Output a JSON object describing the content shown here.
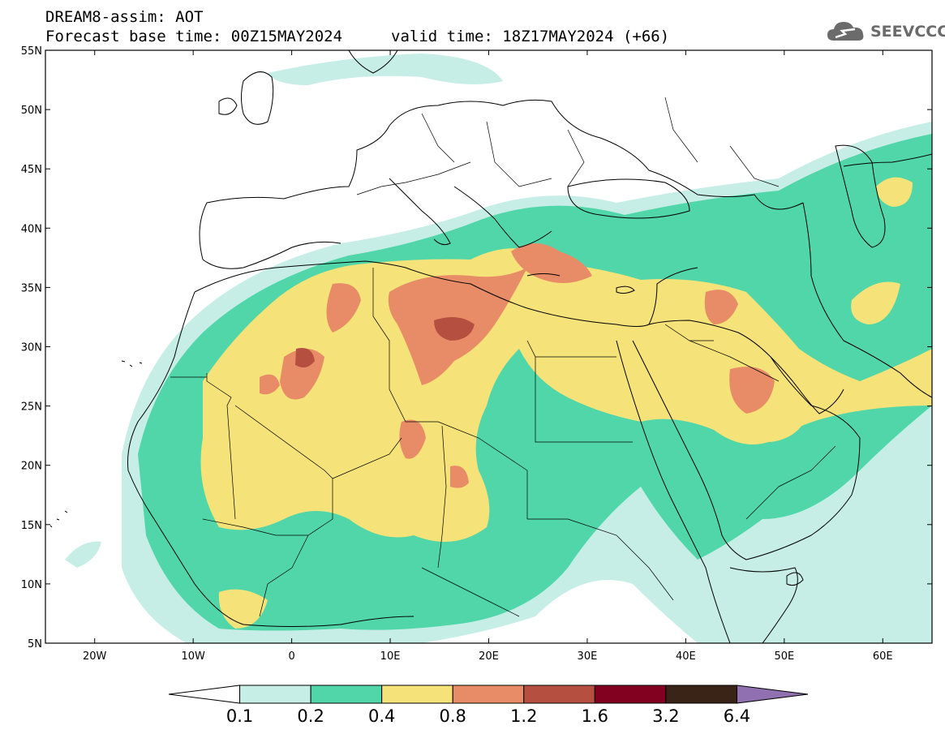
{
  "header": {
    "title_line1": "DREAM8-assim: AOT",
    "title_line2": "Forecast base time: 00Z15MAY2024",
    "valid_time": "valid time: 18Z17MAY2024 (+66)"
  },
  "logo": {
    "text": "SEEVCCC",
    "icon": "cloud-icon"
  },
  "map": {
    "lat_labels": [
      "55N",
      "50N",
      "45N",
      "40N",
      "35N",
      "30N",
      "25N",
      "20N",
      "15N",
      "10N",
      "5N"
    ],
    "lon_labels": [
      "20W",
      "10W",
      "0",
      "10E",
      "20E",
      "30E",
      "40E",
      "50E",
      "60E"
    ],
    "lat_range": [
      5,
      55
    ],
    "lon_range": [
      -25,
      65
    ]
  },
  "colorbar": {
    "labels": [
      "0.1",
      "0.2",
      "0.4",
      "0.8",
      "1.2",
      "1.6",
      "3.2",
      "6.4"
    ],
    "colors": [
      "#ffffff",
      "#c6eee6",
      "#50d6a8",
      "#f5e278",
      "#e88c68",
      "#b55040",
      "#820020",
      "#3a2418",
      "#9070b0"
    ]
  },
  "aot_colors": {
    "c01": "#c6eee6",
    "c02": "#50d6a8",
    "c04": "#f5e278",
    "c08": "#e88c68",
    "c12": "#b55040",
    "c16": "#820020"
  }
}
